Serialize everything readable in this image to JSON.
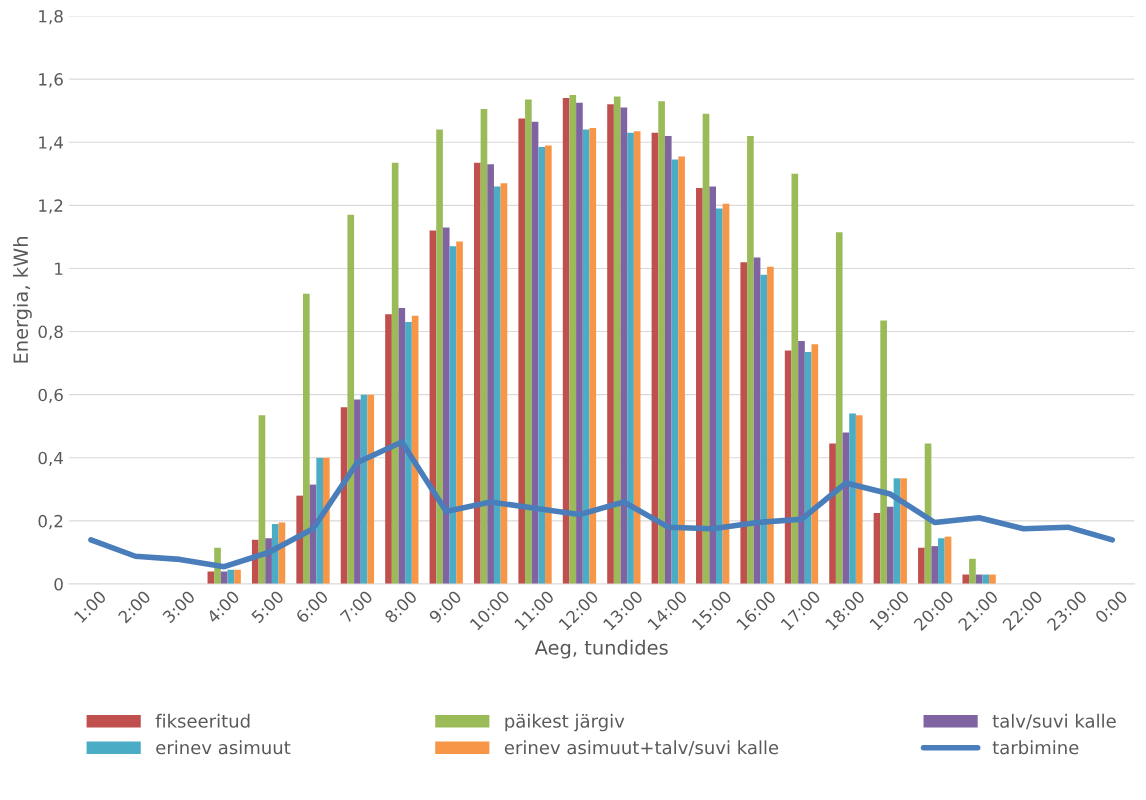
{
  "chart_data": {
    "type": "bar",
    "xlabel": "Aeg, tundides",
    "ylabel": "Energia, kWh",
    "categories": [
      "1:00",
      "2:00",
      "3:00",
      "4:00",
      "5:00",
      "6:00",
      "7:00",
      "8:00",
      "9:00",
      "10:00",
      "11:00",
      "12:00",
      "13:00",
      "14:00",
      "15:00",
      "16:00",
      "17:00",
      "18:00",
      "19:00",
      "20:00",
      "21:00",
      "22:00",
      "23:00",
      "0:00"
    ],
    "series": [
      {
        "name": "fikseeritud",
        "color": "#c0504d",
        "values": [
          null,
          null,
          null,
          0.04,
          0.14,
          0.28,
          0.56,
          0.855,
          1.12,
          1.335,
          1.475,
          1.54,
          1.52,
          1.43,
          1.255,
          1.02,
          0.74,
          0.445,
          0.225,
          0.115,
          0.03,
          null,
          null,
          null
        ]
      },
      {
        "name": "päikest järgiv",
        "color": "#9bbb59",
        "values": [
          null,
          null,
          null,
          0.115,
          0.535,
          0.92,
          1.17,
          1.335,
          1.44,
          1.505,
          1.535,
          1.55,
          1.545,
          1.53,
          1.49,
          1.42,
          1.3,
          1.115,
          0.835,
          0.445,
          0.08,
          null,
          null,
          null
        ]
      },
      {
        "name": "talv/suvi kalle",
        "color": "#8064a2",
        "values": [
          null,
          null,
          null,
          0.04,
          0.145,
          0.315,
          0.585,
          0.875,
          1.13,
          1.33,
          1.465,
          1.525,
          1.51,
          1.42,
          1.26,
          1.035,
          0.77,
          0.48,
          0.245,
          0.12,
          0.03,
          null,
          null,
          null
        ]
      },
      {
        "name": "erinev asimuut",
        "color": "#4bacc6",
        "values": [
          null,
          null,
          null,
          0.045,
          0.19,
          0.4,
          0.6,
          0.83,
          1.07,
          1.26,
          1.385,
          1.44,
          1.43,
          1.345,
          1.19,
          0.98,
          0.735,
          0.54,
          0.335,
          0.145,
          0.03,
          null,
          null,
          null
        ]
      },
      {
        "name": "erinev asimuut+talv/suvi kalle",
        "color": "#f79646",
        "values": [
          null,
          null,
          null,
          0.045,
          0.195,
          0.4,
          0.6,
          0.85,
          1.085,
          1.27,
          1.39,
          1.445,
          1.435,
          1.355,
          1.205,
          1.005,
          0.76,
          0.535,
          0.335,
          0.15,
          0.03,
          null,
          null,
          null
        ]
      },
      {
        "name": "tarbimine",
        "type": "line",
        "color": "#4a7ebb",
        "values": [
          0.14,
          0.088,
          0.078,
          0.055,
          0.1,
          0.175,
          0.385,
          0.45,
          0.23,
          0.26,
          0.24,
          0.22,
          0.26,
          0.18,
          0.175,
          0.195,
          0.205,
          0.32,
          0.285,
          0.195,
          0.21,
          0.175,
          0.18,
          0.14
        ]
      }
    ],
    "ylim": [
      0,
      1.8
    ],
    "yticks": [
      0,
      {
        "value": 0.2,
        "label": "0,2"
      },
      {
        "value": 0.4,
        "label": "0,4"
      },
      {
        "value": 0.6,
        "label": "0,6"
      },
      {
        "value": 0.8,
        "label": "0,8"
      },
      1,
      {
        "value": 1.2,
        "label": "1,2"
      },
      {
        "value": 1.4,
        "label": "1,4"
      },
      {
        "value": 1.6,
        "label": "1,6"
      },
      {
        "value": 1.8,
        "label": "1,8"
      }
    ],
    "grid": "y",
    "legend": "bottom"
  }
}
